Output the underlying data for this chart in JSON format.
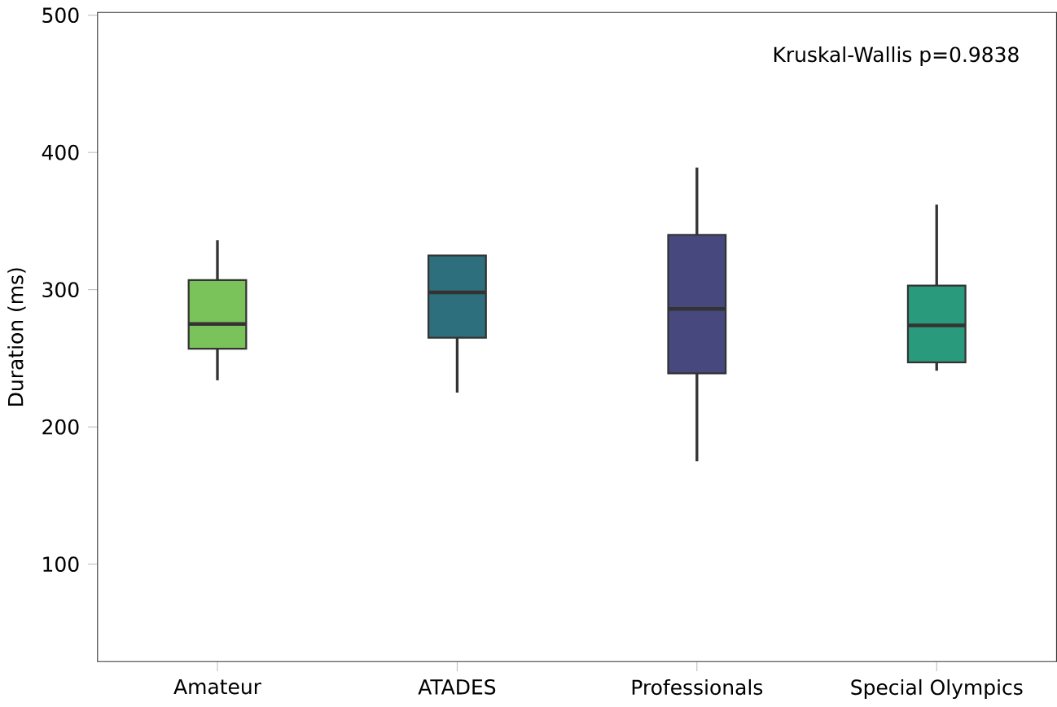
{
  "chart_data": {
    "type": "box",
    "ylabel": "Duration (ms)",
    "categories": [
      "Amateur",
      "ATADES",
      "Professionals",
      "Special Olympics"
    ],
    "colors": [
      "#7ac35a",
      "#2e6f7e",
      "#46487e",
      "#2a9a7c"
    ],
    "boxes": [
      {
        "low": 234,
        "q1": 257,
        "median": 275,
        "q3": 307,
        "high": 336
      },
      {
        "low": 225,
        "q1": 265,
        "median": 298,
        "q3": 325,
        "high": 325
      },
      {
        "low": 175,
        "q1": 239,
        "median": 286,
        "q3": 340,
        "high": 389
      },
      {
        "low": 241,
        "q1": 247,
        "median": 274,
        "q3": 303,
        "high": 362
      }
    ],
    "ylim": [
      29,
      502
    ],
    "yticks": [
      100,
      200,
      300,
      400,
      500
    ],
    "annotations": [
      "Kruskal-Wallis p=0.9838"
    ]
  }
}
